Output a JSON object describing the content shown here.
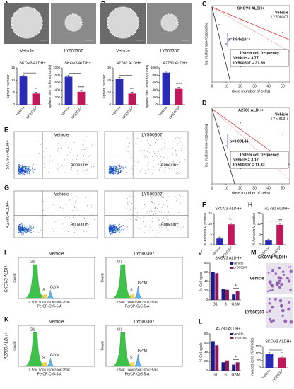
{
  "letters": [
    "A",
    "B",
    "C",
    "D",
    "E",
    "F",
    "G",
    "H",
    "I",
    "J",
    "K",
    "L",
    "M"
  ],
  "sphere_images": [
    {
      "title": "SKOV3 ALDH+",
      "captions": [
        "Vehicle",
        "LY500307"
      ]
    },
    {
      "title": "A2780 ALDH+",
      "captions": [
        "Vehicle",
        "LY500307"
      ]
    }
  ],
  "bar_charts": [
    {
      "title": "SKOV3 ALDH+",
      "ylabel": "sphere number",
      "categories": [
        "Vehicle",
        "LY500307"
      ],
      "values": [
        11.5,
        4.5
      ],
      "colors": [
        "#2a2ab5",
        "#c0185a"
      ],
      "ylim": [
        0,
        15
      ],
      "yticks": [
        0,
        5,
        10,
        15
      ],
      "significance": "**"
    },
    {
      "title": "SKOV3 ALDH+",
      "ylabel": "sphere size (arbitrary units)",
      "categories": [
        "Vehicle",
        "LY500307"
      ],
      "values": [
        760,
        350
      ],
      "colors": [
        "#2a2ab5",
        "#c0185a"
      ],
      "ylim": [
        0,
        1000
      ],
      "yticks": [
        0,
        200,
        400,
        600,
        800,
        1000
      ],
      "significance": "****"
    },
    {
      "title": "A2780 ALDH+",
      "ylabel": "sphere number",
      "categories": [
        "Vehicle",
        "LY500307"
      ],
      "values": [
        21,
        9
      ],
      "colors": [
        "#2a2ab5",
        "#c0185a"
      ],
      "ylim": [
        0,
        30
      ],
      "yticks": [
        0,
        10,
        20,
        30
      ],
      "significance": "***"
    },
    {
      "title": "A2780 ALDH+",
      "ylabel": "sphere size (arbitrary units)",
      "categories": [
        "Vehicle",
        "LY500307"
      ],
      "values": [
        870,
        430
      ],
      "colors": [
        "#2a2ab5",
        "#c0185a"
      ],
      "ylim": [
        0,
        1000
      ],
      "yticks": [
        0,
        200,
        400,
        600,
        800,
        1000
      ],
      "significance": "****"
    },
    {
      "title": "SKOV3 ALDH+",
      "ylabel": "% Annexin V positive",
      "categories": [
        "Vehicle",
        "LY500307"
      ],
      "values": [
        3,
        9.8
      ],
      "colors": [
        "#2a2ab5",
        "#c0185a"
      ],
      "ylim": [
        0,
        15
      ],
      "yticks": [
        0,
        5,
        10,
        15
      ],
      "significance": "***"
    },
    {
      "title": "A2780 ALDH+",
      "ylabel": "% Annexin V positive",
      "categories": [
        "Vehicle",
        "LY500307"
      ],
      "values": [
        2,
        9.6
      ],
      "colors": [
        "#2a2ab5",
        "#c0185a"
      ],
      "ylim": [
        0,
        15
      ],
      "yticks": [
        0,
        5,
        10,
        15
      ],
      "significance": "***"
    },
    {
      "title": "SKOV3 ALDH+",
      "ylabel": "Invaded cells (%Vehicle)",
      "categories": [
        "Vehicle",
        "LY500307"
      ],
      "values": [
        100,
        72
      ],
      "colors": [
        "#2a2ab5",
        "#c0185a"
      ],
      "ylim": [
        0,
        150
      ],
      "yticks": [
        0,
        50,
        100,
        150
      ],
      "significance": "*"
    },
    {
      "title": "SKOV3 ALDH+",
      "ylabel": "% Cell cycle",
      "categories": [
        "G1",
        "S",
        "G2/M"
      ],
      "series": [
        {
          "name": "Vehicle",
          "color": "#1a1a8c",
          "values": [
            60,
            24,
            12
          ]
        },
        {
          "name": "LY500307",
          "color": "#8b1a5a",
          "values": [
            58,
            22,
            19
          ]
        }
      ],
      "ylim": [
        0,
        80
      ],
      "yticks": [
        0,
        20,
        40,
        60,
        80
      ],
      "significance": "*"
    },
    {
      "title": "A2780 ALDH+",
      "ylabel": "% Cell cycle",
      "categories": [
        "G1",
        "S",
        "G2/M"
      ],
      "series": [
        {
          "name": "Vehicle",
          "color": "#1a1a8c",
          "values": [
            64,
            18,
            13
          ]
        },
        {
          "name": "LY500307",
          "color": "#8b1a5a",
          "values": [
            55,
            22,
            18
          ]
        }
      ],
      "ylim": [
        0,
        80
      ],
      "yticks": [
        0,
        20,
        40,
        60,
        80
      ],
      "significance": "*"
    }
  ],
  "dilution_plots": [
    {
      "title": "SKOV3 ALDH+",
      "legend": [
        "Vehicle",
        "LY500307"
      ],
      "ylabel": "log fraction non-responding",
      "xlabel": "dose (number of cells)",
      "xlim": [
        0,
        55
      ],
      "xticks": [
        0,
        10,
        20,
        30,
        40,
        50
      ],
      "p": "p=3.94x10⁻⁵",
      "stat_title": "1/stem cell frequency",
      "stats": [
        "Vehicle = 3.77",
        "LY500307 = 31.59"
      ]
    },
    {
      "title": "A2780 ALDH+",
      "legend": [
        "Vehicle",
        "LY500307"
      ],
      "ylabel": "log fraction non-responding",
      "xlabel": "dose (number of cells)",
      "xlim": [
        0,
        55
      ],
      "xticks": [
        0,
        10,
        20,
        30,
        40,
        50
      ],
      "p": "p=0.00144",
      "stat_title": "1/stem cell frequency",
      "stats": [
        "Vehicle = 3.17",
        "LY500307 = 11.33"
      ]
    }
  ],
  "flow_plots": [
    {
      "row_label": "SKOV3-ALDH+",
      "titles": [
        "Vehicle",
        "LY500307"
      ],
      "gate_label": "Annexin+"
    },
    {
      "row_label": "A2780-ALDH+",
      "titles": [
        "Vehicle",
        "LY500307"
      ],
      "gate_label": "Annexin+"
    }
  ],
  "cycle_histograms": [
    {
      "row_label": "SKOV3 ALDH+",
      "titles": [
        "Vehicle",
        "LY500307"
      ],
      "peaks": [
        "G1",
        "S",
        "G2/M"
      ],
      "ylabel": "Count",
      "xlabel": "PerCP-Cy5-5-A",
      "xtick_text": "0 50K 100K150K200K250K"
    },
    {
      "row_label": "A2780 ALDH+",
      "titles": [
        "Vehicle",
        "LY500307"
      ],
      "peaks": [
        "G1",
        "S",
        "G2/M"
      ],
      "ylabel": "Count",
      "xlabel": "PerCP-Cy5-5-A",
      "xtick_text": "0 50K 100K150K200K250K"
    }
  ],
  "invasion": {
    "title": "SKOV3 ALDH+",
    "rows": [
      "Vehicle",
      "LY500307"
    ]
  }
}
